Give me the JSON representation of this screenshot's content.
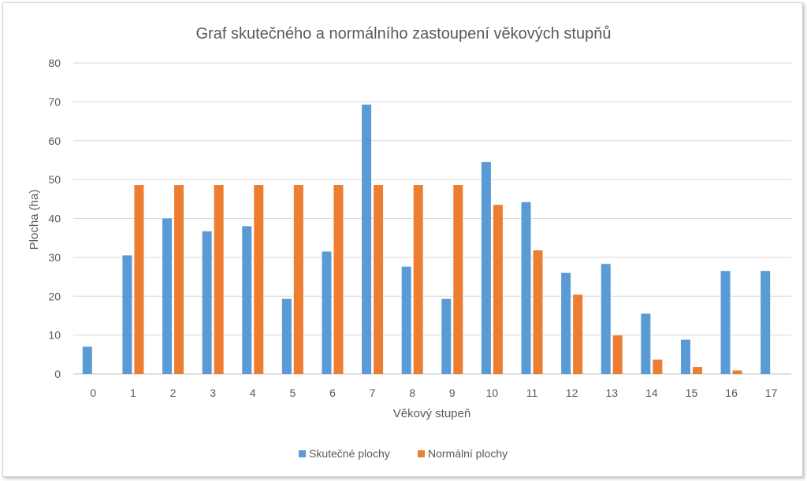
{
  "chart_data": {
    "type": "bar",
    "title": "Graf skutečného a normálního zastoupení věkových stupňů",
    "xlabel": "Věkový stupeň",
    "ylabel": "Plocha (ha)",
    "ylim": [
      0,
      80
    ],
    "yticks": [
      0,
      10,
      20,
      30,
      40,
      50,
      60,
      70,
      80
    ],
    "grid": true,
    "legend_position": "bottom",
    "categories": [
      "0",
      "1",
      "2",
      "3",
      "4",
      "5",
      "6",
      "7",
      "8",
      "9",
      "10",
      "11",
      "12",
      "13",
      "14",
      "15",
      "16",
      "17"
    ],
    "series": [
      {
        "name": "Skutečné plochy",
        "color": "#5B9BD5",
        "values": [
          7.0,
          30.5,
          40.0,
          36.7,
          38.0,
          19.3,
          31.5,
          69.3,
          27.6,
          19.3,
          54.5,
          44.2,
          26.0,
          28.3,
          15.5,
          8.8,
          26.5,
          26.5
        ]
      },
      {
        "name": "Normální plochy",
        "color": "#ED7D31",
        "values": [
          0,
          48.6,
          48.6,
          48.6,
          48.6,
          48.6,
          48.6,
          48.6,
          48.6,
          48.6,
          43.5,
          31.8,
          20.4,
          9.9,
          3.7,
          1.8,
          0.9,
          0
        ]
      }
    ]
  }
}
